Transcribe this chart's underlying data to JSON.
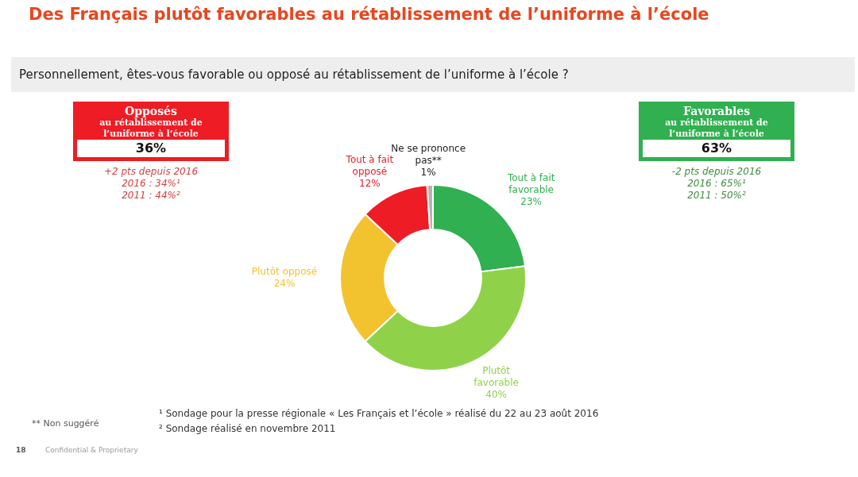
{
  "chart_data": {
    "type": "donut",
    "title": "Des Français plutôt favorables au rétablissement de l’uniforme à l’école",
    "subtitle": "Personnellement, êtes-vous favorable ou opposé au rétablissement de l’uniforme à l’école ?",
    "categories": [
      "Tout à fait favorable",
      "Plutôt favorable",
      "Plutôt opposé",
      "Tout à fait opposé",
      "Ne se prononce pas**"
    ],
    "values": [
      23,
      40,
      24,
      12,
      1
    ],
    "value_labels": [
      "23%",
      "40%",
      "24%",
      "12%",
      "1%"
    ],
    "colors": [
      "#30b050",
      "#8fd24a",
      "#f3c22f",
      "#ee1c24",
      "#b4b4b4"
    ],
    "legend": false,
    "annotations": [
      "Opposés",
      "au rétablissement de l’uniforme à l’école",
      "36%",
      "+2 pts depuis 2016",
      "2016 : 34%¹",
      "2011 : 44%²",
      "Favorables",
      "au rétablissement de l’uniforme à l’école",
      "63%",
      "-2 pts depuis 2016",
      "2016 : 65%¹",
      "2011 : 50%²",
      "** Non suggéré",
      "¹ Sondage pour la presse régionale « Les Français et l’école » réalisé du 22 au 23 août 2016",
      "² Sondage réalisé en novembre 2011",
      "18",
      "Confidential & Proprietary"
    ]
  }
}
